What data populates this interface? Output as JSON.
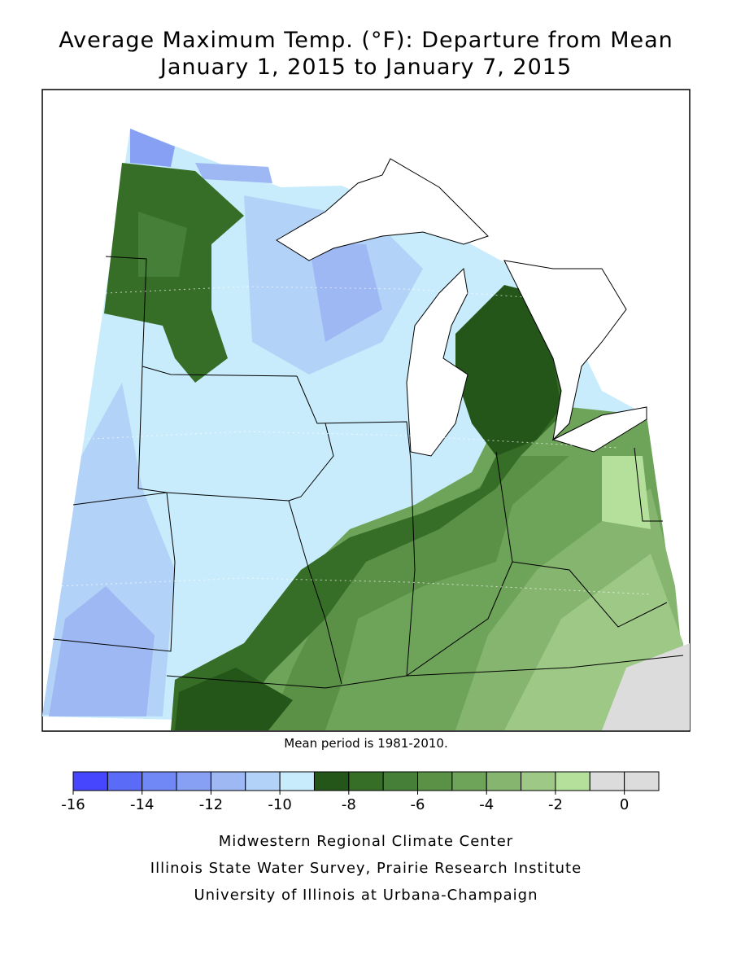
{
  "title": [
    "Average Maximum Temp. (°F): Departure from Mean",
    "January 1, 2015 to January 7, 2015"
  ],
  "note": "Mean period is 1981-2010.",
  "legend": {
    "min": -16,
    "max": 1,
    "ticks": [
      -16,
      -14,
      -12,
      -10,
      -8,
      -6,
      -4,
      -2,
      0
    ],
    "colors": [
      "#4646ff",
      "#5a6cf7",
      "#6f88f5",
      "#87a0f3",
      "#9db8f3",
      "#b3d2f8",
      "#c8ecfc",
      "#24561a",
      "#366d27",
      "#467f37",
      "#5a9147",
      "#6ea35a",
      "#86b570",
      "#9dc886",
      "#b4e09c",
      "#dcdcdc",
      "#dcdcdc"
    ]
  },
  "credits": [
    "Midwestern Regional Climate Center",
    "Illinois State Water Survey, Prairie Research Institute",
    "University of Illinois at Urbana-Champaign"
  ]
}
